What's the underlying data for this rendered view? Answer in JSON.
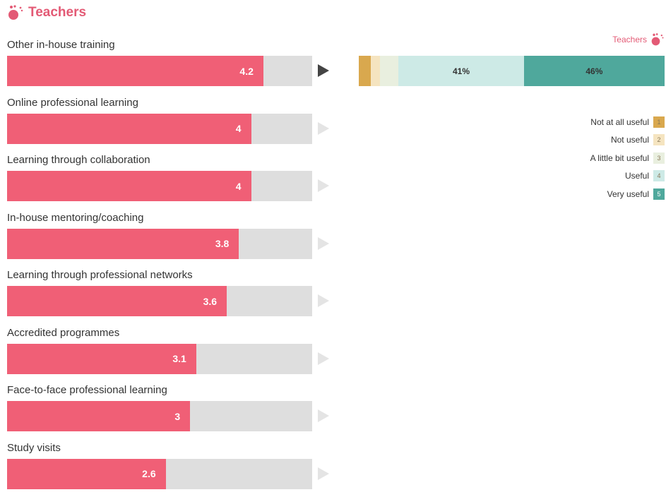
{
  "header": {
    "title": "Teachers"
  },
  "chart_data": [
    {
      "type": "bar",
      "orientation": "horizontal",
      "categories": [
        "Other in-house training",
        "Online professional learning",
        "Learning through collaboration",
        "In-house mentoring/coaching",
        "Learning through professional networks",
        "Accredited programmes",
        "Face-to-face professional learning",
        "Study visits"
      ],
      "values": [
        4.2,
        4,
        4,
        3.8,
        3.6,
        3.1,
        3,
        2.6
      ],
      "value_labels": [
        "4.2",
        "4",
        "4",
        "3.8",
        "3.6",
        "3.1",
        "3",
        "2.6"
      ],
      "xlim": [
        0,
        5
      ],
      "selected_index": 0,
      "colors": {
        "fill": "#f05f76",
        "track": "#dedede"
      }
    },
    {
      "type": "bar",
      "orientation": "horizontal",
      "stacked": true,
      "label": "Teachers",
      "categories": [
        "Other in-house training"
      ],
      "series": [
        {
          "name": "Not at all useful",
          "code": "1",
          "values": [
            4
          ],
          "label": "",
          "color": "#d9a84e"
        },
        {
          "name": "Not useful",
          "code": "2",
          "values": [
            3
          ],
          "label": "",
          "color": "#f5e4c0"
        },
        {
          "name": "A little bit useful",
          "code": "3",
          "values": [
            6
          ],
          "label": "",
          "color": "#e9efdf"
        },
        {
          "name": "Useful",
          "code": "4",
          "values": [
            41
          ],
          "label": "41%",
          "color": "#cdeae6"
        },
        {
          "name": "Very useful",
          "code": "5",
          "values": [
            46
          ],
          "label": "46%",
          "color": "#4fa89c"
        }
      ],
      "xlim": [
        0,
        100
      ],
      "legend": "right"
    }
  ]
}
